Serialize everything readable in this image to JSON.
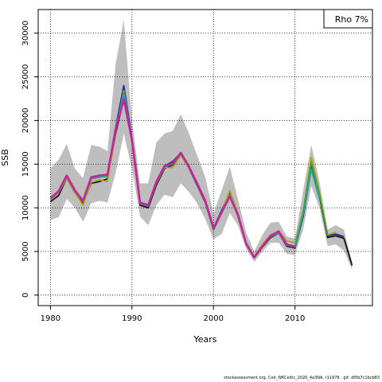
{
  "chart_data": {
    "type": "line",
    "xlabel": "Years",
    "ylabel": "SSB",
    "xlim": [
      1978.5,
      2019.5
    ],
    "ylim": [
      -1200,
      32700
    ],
    "x_ticks": [
      1980,
      1990,
      2000,
      2010
    ],
    "y_ticks": [
      0,
      5000,
      10000,
      15000,
      20000,
      25000,
      30000
    ],
    "grid": "dotted",
    "legend": {
      "position": "top-right",
      "text": "Rho 7%"
    },
    "colors": {
      "band": "#bebebe",
      "main": "#c2269c"
    },
    "confidence_band": {
      "x": [
        1980,
        1981,
        1982,
        1983,
        1984,
        1985,
        1986,
        1987,
        1988,
        1989,
        1990,
        1991,
        1992,
        1993,
        1994,
        1995,
        1996,
        1997,
        1998,
        1999,
        2000,
        2001,
        2002,
        2003,
        2004,
        2005,
        2006,
        2007,
        2008,
        2009,
        2010
      ],
      "upper": [
        14500,
        15500,
        17300,
        14500,
        13400,
        17200,
        17000,
        16500,
        26500,
        31500,
        20000,
        12800,
        12800,
        17500,
        18500,
        18800,
        20700,
        18500,
        16000,
        13500,
        9300,
        12000,
        14700,
        11000,
        7200,
        5000,
        6900,
        8300,
        8400,
        6700,
        6500
      ],
      "lower": [
        8600,
        8900,
        11000,
        10000,
        8400,
        10500,
        10800,
        10600,
        14000,
        18500,
        14500,
        9000,
        8000,
        10300,
        11500,
        11200,
        12800,
        11800,
        10500,
        8700,
        6400,
        7000,
        9400,
        8000,
        5300,
        3800,
        5000,
        6000,
        6000,
        4700,
        4600
      ]
    },
    "retro_band": {
      "x": [
        2010,
        2011,
        2012,
        2013,
        2014,
        2015,
        2016,
        2017
      ],
      "upper": [
        6500,
        12000,
        17200,
        13000,
        7500,
        8000,
        7500,
        3800
      ],
      "lower": [
        4600,
        7500,
        12500,
        10000,
        5600,
        5800,
        5100,
        2900
      ]
    },
    "series": [
      {
        "color": "#111111",
        "x": [
          1980,
          1981,
          1982,
          1983,
          1984,
          1985,
          1986,
          1987,
          1988,
          1989,
          1990,
          1991,
          1992,
          1993,
          1994,
          1995,
          1996,
          1997,
          1998,
          1999,
          2000,
          2001,
          2002,
          2003,
          2004,
          2005,
          2006,
          2007,
          2008,
          2009,
          2010,
          2011,
          2012,
          2013,
          2014,
          2015,
          2016,
          2017
        ],
        "values": [
          10700,
          11400,
          13400,
          11700,
          10500,
          12800,
          13000,
          13300,
          18500,
          22500,
          17600,
          10300,
          10000,
          12600,
          14500,
          14900,
          16100,
          14500,
          12600,
          10600,
          7500,
          9400,
          11300,
          9100,
          5900,
          4300,
          5500,
          6600,
          7100,
          5600,
          5400,
          9000,
          14500,
          11300,
          6600,
          6800,
          6500,
          3400
        ]
      },
      {
        "color": "#1f2a9c",
        "x": [
          1980,
          1981,
          1982,
          1983,
          1984,
          1985,
          1986,
          1987,
          1988,
          1989,
          1990,
          1991,
          1992,
          1993,
          1994,
          1995,
          1996,
          1997,
          1998,
          1999,
          2000,
          2001,
          2002,
          2003,
          2004,
          2005,
          2006,
          2007,
          2008,
          2009,
          2010,
          2011,
          2012,
          2013,
          2014,
          2015,
          2016
        ],
        "values": [
          11000,
          11800,
          13700,
          11900,
          10800,
          13400,
          13600,
          13800,
          19200,
          24000,
          17900,
          10600,
          10300,
          13000,
          14800,
          15300,
          16300,
          14700,
          12800,
          10800,
          7700,
          9700,
          11700,
          9300,
          6000,
          4400,
          5700,
          6800,
          7200,
          5800,
          5600,
          9300,
          14900,
          11600,
          6800,
          7000,
          6700
        ]
      },
      {
        "color": "#b8a21a",
        "x": [
          1980,
          1981,
          1982,
          1983,
          1984,
          1985,
          1986,
          1987,
          1988,
          1989,
          1990,
          1991,
          1992,
          1993,
          1994,
          1995,
          1996,
          1997,
          1998,
          1999,
          2000,
          2001,
          2002,
          2003,
          2004,
          2005,
          2006,
          2007,
          2008,
          2009,
          2010,
          2011,
          2012,
          2013,
          2014,
          2015
        ],
        "values": [
          10900,
          11700,
          13400,
          11700,
          10300,
          12900,
          13200,
          13000,
          18700,
          23400,
          17400,
          10500,
          10200,
          12800,
          14600,
          14600,
          16000,
          14500,
          12700,
          10700,
          7600,
          9500,
          12000,
          9400,
          6000,
          4400,
          5800,
          6900,
          7300,
          6200,
          6000,
          9700,
          15800,
          11800,
          6900,
          7200
        ]
      },
      {
        "color": "#3aa53a",
        "x": [
          1980,
          1981,
          1982,
          1983,
          1984,
          1985,
          1986,
          1987,
          1988,
          1989,
          1990,
          1991,
          1992,
          1993,
          1994,
          1995,
          1996,
          1997,
          1998,
          1999,
          2000,
          2001,
          2002,
          2003,
          2004,
          2005,
          2006,
          2007,
          2008,
          2009,
          2010,
          2011,
          2012,
          2013,
          2014
        ],
        "values": [
          11000,
          11800,
          13600,
          11900,
          10700,
          13300,
          13500,
          13600,
          19000,
          23200,
          17700,
          10500,
          10200,
          12900,
          14700,
          15000,
          16200,
          14600,
          12700,
          10700,
          7600,
          9500,
          11500,
          9200,
          5900,
          4300,
          5600,
          6700,
          7200,
          5800,
          5600,
          9500,
          15200,
          11500,
          6800
        ]
      },
      {
        "color": "#2aa0a8",
        "x": [
          1980,
          1981,
          1982,
          1983,
          1984,
          1985,
          1986,
          1987,
          1988,
          1989,
          1990,
          1991,
          1992,
          1993,
          1994,
          1995,
          1996,
          1997,
          1998,
          1999,
          2000,
          2001,
          2002,
          2003,
          2004,
          2005,
          2006,
          2007,
          2008,
          2009,
          2010,
          2011,
          2012,
          2013
        ],
        "values": [
          11000,
          11800,
          13600,
          11900,
          10700,
          13300,
          13500,
          13700,
          19100,
          23000,
          17700,
          10500,
          10200,
          12900,
          14700,
          15000,
          16200,
          14600,
          12700,
          10700,
          7600,
          9400,
          11300,
          9100,
          5900,
          4300,
          5600,
          6700,
          7100,
          5700,
          5500,
          9200,
          14400,
          11000
        ]
      },
      {
        "color": "#c2269c",
        "x": [
          1980,
          1981,
          1982,
          1983,
          1984,
          1985,
          1986,
          1987,
          1988,
          1989,
          1990,
          1991,
          1992,
          1993,
          1994,
          1995,
          1996,
          1997,
          1998,
          1999,
          2000,
          2001,
          2002,
          2003,
          2004,
          2005,
          2006,
          2007,
          2008,
          2009,
          2010
        ],
        "values": [
          11100,
          11900,
          13700,
          12000,
          10800,
          13500,
          13700,
          13800,
          19000,
          22400,
          17800,
          10600,
          10300,
          13000,
          14800,
          15100,
          16300,
          14700,
          12800,
          10800,
          7700,
          9500,
          11300,
          9200,
          5900,
          4300,
          5600,
          6800,
          7300,
          5800,
          5500
        ]
      }
    ]
  },
  "footer_text": "stockassessment.org, Cod_WKCeltic_2020_4a3NA, r11978 , git: df0b7c1bcb83"
}
